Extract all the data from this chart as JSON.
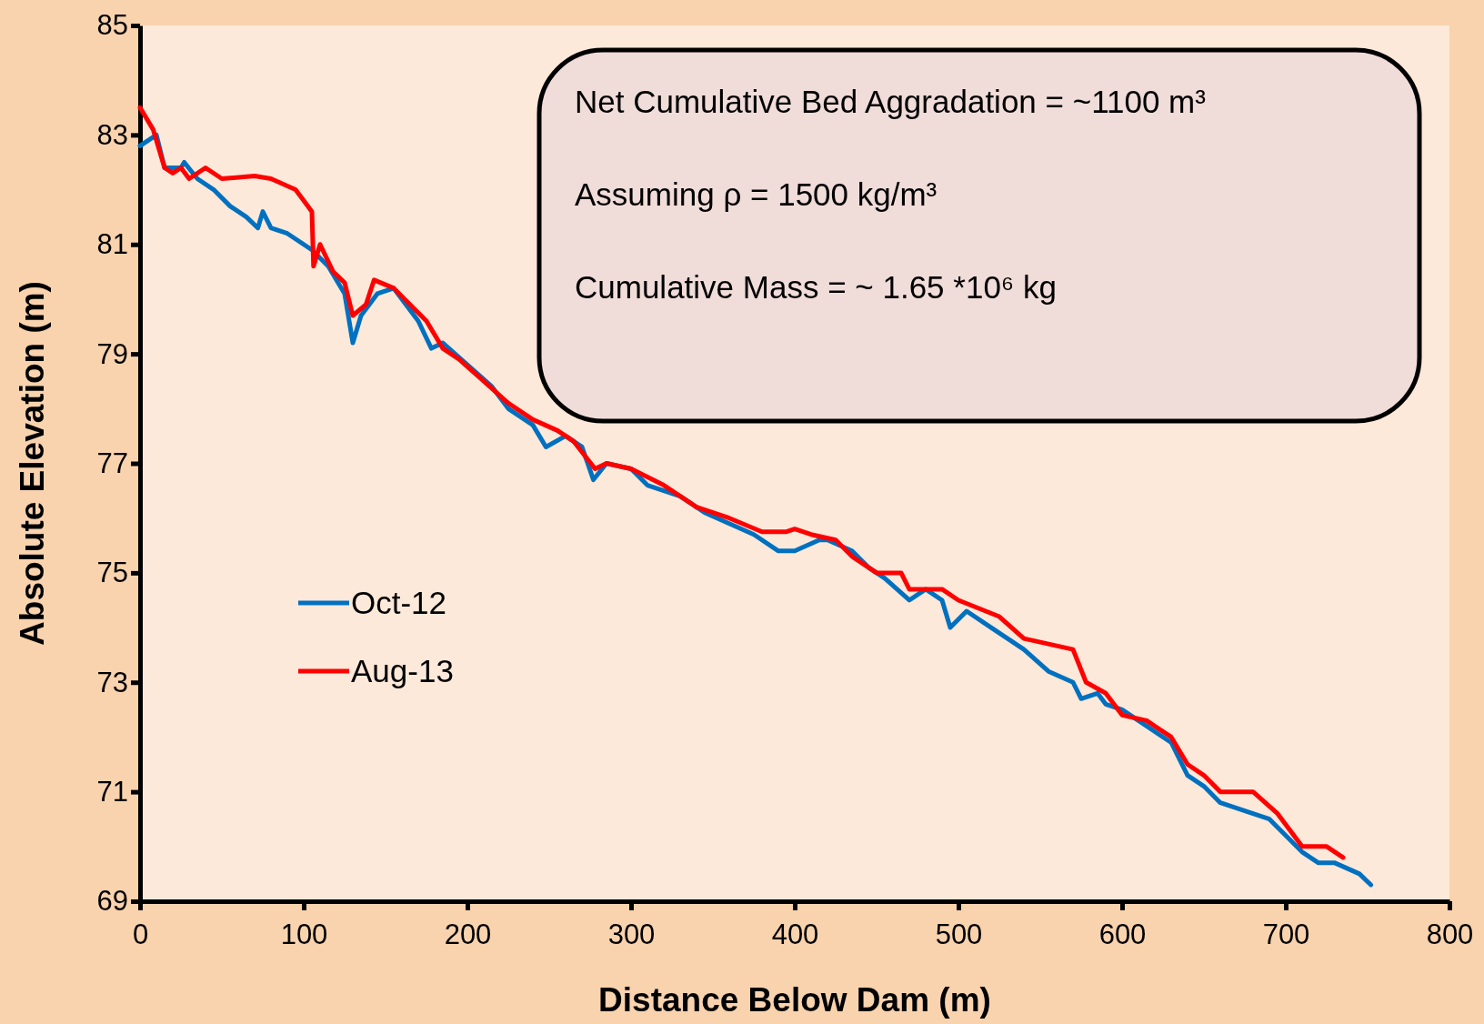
{
  "chart_data": {
    "type": "line",
    "xlabel": "Distance Below Dam (m)",
    "ylabel": "Absolute Elevation (m)",
    "xlim": [
      0,
      800
    ],
    "xticks": [
      0,
      100,
      200,
      300,
      400,
      500,
      600,
      700,
      800
    ],
    "ylim": [
      69,
      85
    ],
    "yticks": [
      69,
      71,
      73,
      75,
      77,
      79,
      81,
      83,
      85
    ],
    "grid": false,
    "legend": "left",
    "marker": "none",
    "line_style": "solid",
    "annotations": [
      "Net Cumulative Bed Aggradation = ~1100 m³",
      "Assuming ρ = 1500 kg/m³",
      "Cumulative Mass = ~ 1.65 *10⁶ kg"
    ],
    "series": [
      {
        "name": "Oct-12",
        "color": "#0070c0",
        "x": [
          0,
          10,
          15,
          25,
          27,
          35,
          45,
          55,
          65,
          72,
          75,
          80,
          90,
          100,
          105,
          115,
          125,
          130,
          135,
          145,
          155,
          165,
          170,
          178,
          185,
          200,
          215,
          225,
          240,
          248,
          260,
          270,
          277,
          285,
          300,
          310,
          320,
          330,
          345,
          360,
          375,
          390,
          400,
          415,
          420,
          435,
          445,
          455,
          470,
          480,
          490,
          495,
          505,
          520,
          540,
          555,
          570,
          575,
          585,
          590,
          600,
          615,
          630,
          640,
          650,
          660,
          670,
          680,
          690,
          700,
          710,
          720,
          730,
          745,
          752
        ],
        "values": [
          82.8,
          83.0,
          82.4,
          82.4,
          82.5,
          82.2,
          82.0,
          81.7,
          81.5,
          81.3,
          81.6,
          81.3,
          81.2,
          81.0,
          80.9,
          80.6,
          80.1,
          79.2,
          79.7,
          80.1,
          80.2,
          79.8,
          79.6,
          79.1,
          79.2,
          78.8,
          78.4,
          78.0,
          77.7,
          77.3,
          77.5,
          77.3,
          76.7,
          77.0,
          76.9,
          76.6,
          76.5,
          76.4,
          76.1,
          75.9,
          75.7,
          75.4,
          75.4,
          75.6,
          75.6,
          75.4,
          75.1,
          74.9,
          74.5,
          74.7,
          74.5,
          74.0,
          74.3,
          74.0,
          73.6,
          73.2,
          73.0,
          72.7,
          72.8,
          72.6,
          72.5,
          72.2,
          71.9,
          71.3,
          71.1,
          70.8,
          70.7,
          70.6,
          70.5,
          70.2,
          69.9,
          69.7,
          69.7,
          69.5,
          69.3
        ]
      },
      {
        "name": "Aug-13",
        "color": "#ff0000",
        "x": [
          0,
          8,
          15,
          20,
          25,
          30,
          40,
          50,
          70,
          80,
          95,
          100,
          105,
          106,
          110,
          118,
          125,
          130,
          138,
          143,
          155,
          165,
          175,
          185,
          195,
          210,
          225,
          240,
          255,
          265,
          278,
          285,
          300,
          320,
          340,
          360,
          380,
          395,
          400,
          410,
          425,
          435,
          450,
          465,
          470,
          490,
          500,
          525,
          540,
          555,
          570,
          578,
          590,
          600,
          615,
          630,
          640,
          650,
          660,
          680,
          695,
          710,
          725,
          735
        ],
        "values": [
          83.5,
          83.1,
          82.4,
          82.3,
          82.4,
          82.2,
          82.4,
          82.2,
          82.25,
          82.2,
          82.0,
          81.8,
          81.6,
          80.6,
          81.0,
          80.5,
          80.3,
          79.7,
          79.9,
          80.35,
          80.2,
          79.9,
          79.6,
          79.1,
          78.9,
          78.5,
          78.1,
          77.8,
          77.6,
          77.4,
          76.9,
          77.0,
          76.9,
          76.6,
          76.2,
          76.0,
          75.75,
          75.75,
          75.8,
          75.7,
          75.6,
          75.3,
          75.0,
          75.0,
          74.7,
          74.7,
          74.5,
          74.2,
          73.8,
          73.7,
          73.6,
          73.0,
          72.8,
          72.4,
          72.3,
          72.0,
          71.5,
          71.3,
          71.0,
          71.0,
          70.6,
          70.0,
          70.0,
          69.8
        ]
      }
    ]
  }
}
